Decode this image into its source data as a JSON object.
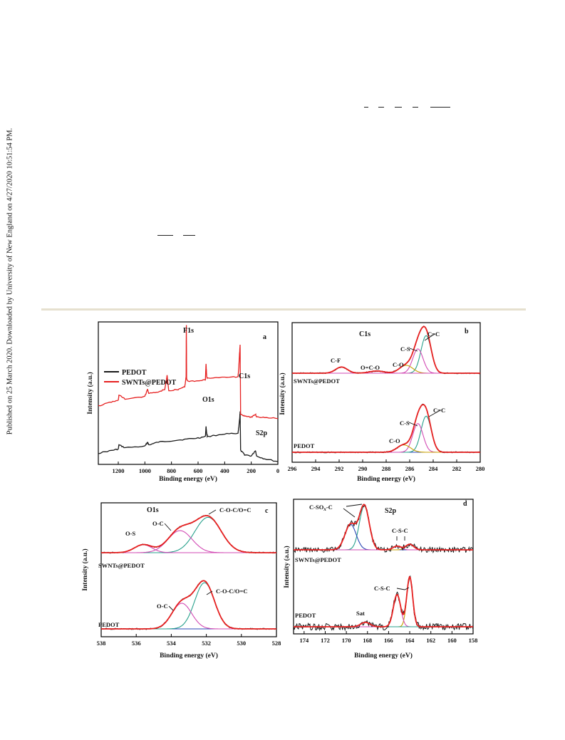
{
  "sidebar_text": "Published on 25 March 2020. Downloaded by University of New England on 4/27/2020 10:51:54 PM.",
  "colors": {
    "black_trace": "#1a1a1a",
    "red_trace": "#e62020",
    "teal": "#28a08c",
    "blue": "#2846b4",
    "magenta": "#d24bb4",
    "orange": "#c8a000"
  },
  "chart_data": [
    {
      "type": "line",
      "panel": "a",
      "xlabel": "Binding energy (eV)",
      "ylabel": "Intensity (a.u.)",
      "xlim": [
        1350,
        0
      ],
      "xticks": [
        1200,
        1000,
        800,
        600,
        400,
        200,
        0
      ],
      "legend": [
        "PEDOT",
        "SWNTs@PEDOT"
      ],
      "legend_position": "top-left",
      "annotations": [
        "F1s",
        "O1s",
        "C1s",
        "S2p"
      ],
      "series": [
        {
          "name": "PEDOT",
          "color": "#1a1a1a",
          "x": [
            1350,
            1250,
            1200,
            1195,
            1150,
            1000,
            980,
            970,
            900,
            800,
            700,
            600,
            545,
            540,
            535,
            530,
            400,
            300,
            295,
            288,
            284,
            280,
            250,
            200,
            168,
            160,
            100,
            0
          ],
          "y": [
            0.08,
            0.1,
            0.11,
            0.14,
            0.12,
            0.13,
            0.16,
            0.14,
            0.16,
            0.17,
            0.18,
            0.19,
            0.2,
            0.27,
            0.22,
            0.2,
            0.22,
            0.22,
            0.26,
            0.32,
            0.38,
            0.1,
            0.07,
            0.06,
            0.1,
            0.06,
            0.04,
            0.02
          ]
        },
        {
          "name": "SWNTs@PEDOT",
          "color": "#e62020",
          "x": [
            1350,
            1250,
            1200,
            1195,
            1150,
            1000,
            980,
            970,
            900,
            850,
            833,
            820,
            750,
            700,
            690,
            688,
            686,
            680,
            600,
            545,
            540,
            535,
            530,
            400,
            300,
            295,
            288,
            284,
            280,
            250,
            200,
            168,
            160,
            100,
            0
          ],
          "y": [
            0.42,
            0.45,
            0.46,
            0.5,
            0.47,
            0.49,
            0.54,
            0.51,
            0.52,
            0.54,
            0.64,
            0.53,
            0.54,
            0.56,
            0.63,
            1.0,
            0.62,
            0.6,
            0.6,
            0.61,
            0.72,
            0.63,
            0.62,
            0.63,
            0.63,
            0.68,
            0.8,
            0.86,
            0.36,
            0.35,
            0.34,
            0.36,
            0.34,
            0.34,
            0.33
          ]
        }
      ]
    },
    {
      "type": "line",
      "panel": "b",
      "xlabel": "Binding energy (eV)",
      "ylabel": "Intensity (a.u.)",
      "xlim": [
        296,
        280
      ],
      "xticks": [
        296,
        294,
        292,
        290,
        288,
        286,
        284,
        282,
        280
      ],
      "annotations": [
        "C1s",
        "C-F",
        "O=C-O",
        "C-O",
        "C-S",
        "C=C",
        "SWNTs@PEDOT",
        "PEDOT"
      ],
      "peaks": [
        {
          "group": "SWNTs@PEDOT",
          "label": "C=C",
          "center": 284.6,
          "amplitude": 0.85,
          "width": 0.7,
          "color": "#28a08c"
        },
        {
          "group": "SWNTs@PEDOT",
          "label": "C-S",
          "center": 285.3,
          "amplitude": 0.55,
          "width": 0.7,
          "color": "#d24bb4"
        },
        {
          "group": "SWNTs@PEDOT",
          "label": "C-O",
          "center": 286.3,
          "amplitude": 0.18,
          "width": 0.9,
          "color": "#c8a000"
        },
        {
          "group": "SWNTs@PEDOT",
          "label": "O=C-O",
          "center": 288.8,
          "amplitude": 0.05,
          "width": 1.0,
          "color": "#d24bb4"
        },
        {
          "group": "SWNTs@PEDOT",
          "label": "C-F",
          "center": 291.8,
          "amplitude": 0.14,
          "width": 0.8,
          "color": "#d24bb4"
        },
        {
          "group": "PEDOT",
          "label": "C=C",
          "center": 284.6,
          "amplitude": 0.78,
          "width": 0.7,
          "color": "#28a08c"
        },
        {
          "group": "PEDOT",
          "label": "C-S",
          "center": 285.3,
          "amplitude": 0.62,
          "width": 0.7,
          "color": "#d24bb4"
        },
        {
          "group": "PEDOT",
          "label": "C-O",
          "center": 286.5,
          "amplitude": 0.16,
          "width": 0.9,
          "color": "#c8a000"
        }
      ]
    },
    {
      "type": "line",
      "panel": "c",
      "xlabel": "Binding energy (eV)",
      "ylabel": "Intensity (a.u.)",
      "xlim": [
        538,
        528
      ],
      "xticks": [
        538,
        536,
        534,
        532,
        530,
        528
      ],
      "annotations": [
        "O1s",
        "O-S",
        "O-C",
        "C-O-C/O=C",
        "SWNTs@PEDOT",
        "PEDOT"
      ],
      "peaks": [
        {
          "group": "SWNTs@PEDOT",
          "label": "C-O-C/O=C",
          "center": 531.9,
          "amplitude": 0.8,
          "width": 1.2,
          "color": "#28a08c"
        },
        {
          "group": "SWNTs@PEDOT",
          "label": "O-C",
          "center": 533.5,
          "amplitude": 0.5,
          "width": 1.1,
          "color": "#d24bb4"
        },
        {
          "group": "SWNTs@PEDOT",
          "label": "O-S",
          "center": 535.6,
          "amplitude": 0.18,
          "width": 0.8,
          "color": "#d24bb4"
        },
        {
          "group": "PEDOT",
          "label": "C-O-C/O=C",
          "center": 532.1,
          "amplitude": 0.9,
          "width": 0.9,
          "color": "#28a08c"
        },
        {
          "group": "PEDOT",
          "label": "O-C",
          "center": 533.4,
          "amplitude": 0.5,
          "width": 0.9,
          "color": "#d24bb4"
        }
      ]
    },
    {
      "type": "line",
      "panel": "d",
      "xlabel": "Binding energy (eV)",
      "ylabel": "Intensity (a.u.)",
      "xlim": [
        175,
        158
      ],
      "xticks": [
        174,
        172,
        170,
        168,
        166,
        164,
        162,
        160,
        158
      ],
      "annotations": [
        "S2p",
        "C-SOx-C",
        "C-S-C",
        "Sat",
        "SWNTs@PEDOT",
        "PEDOT"
      ],
      "peaks": [
        {
          "group": "SWNTs@PEDOT",
          "label": "C-SOx-C",
          "center": 168.3,
          "amplitude": 0.95,
          "width": 0.75,
          "color": "#28a08c"
        },
        {
          "group": "SWNTs@PEDOT",
          "label": "C-SOx-C",
          "center": 169.6,
          "amplitude": 0.55,
          "width": 0.85,
          "color": "#2846b4"
        },
        {
          "group": "SWNTs@PEDOT",
          "label": "C-S-C",
          "center": 164.0,
          "amplitude": 0.12,
          "width": 0.6,
          "color": "#c8a000"
        },
        {
          "group": "SWNTs@PEDOT",
          "label": "C-S-C",
          "center": 165.2,
          "amplitude": 0.08,
          "width": 0.6,
          "color": "#d24bb4"
        },
        {
          "group": "PEDOT",
          "label": "C-S-C",
          "center": 164.0,
          "amplitude": 0.9,
          "width": 0.45,
          "color": "#c8a000"
        },
        {
          "group": "PEDOT",
          "label": "C-S-C",
          "center": 165.2,
          "amplitude": 0.58,
          "width": 0.55,
          "color": "#d24bb4"
        },
        {
          "group": "PEDOT",
          "label": "Sat",
          "center": 168.2,
          "amplitude": 0.08,
          "width": 0.7,
          "color": "#28a08c"
        }
      ]
    }
  ],
  "panels": {
    "a": {
      "letter": "a",
      "ylabel": "Intensity (a.u.)",
      "xlabel": "Binding energy (eV)",
      "legend_pedot": "PEDOT",
      "legend_swnt": "SWNTs@PEDOT",
      "lbl_f1s": "F1s",
      "lbl_o1s": "O1s",
      "lbl_c1s": "C1s",
      "lbl_s2p": "S2p"
    },
    "b": {
      "letter": "b",
      "ylabel": "Intensity (a.u.)",
      "xlabel": "Binding energy (eV)",
      "title": "C1s",
      "lbl_cf": "C-F",
      "lbl_oco": "O=C-O",
      "lbl_co": "C-O",
      "lbl_cs": "C-S",
      "lbl_cc": "C=C",
      "group_top": "SWNTs@PEDOT",
      "group_bottom": "PEDOT",
      "lbl_co2": "C-O",
      "lbl_cs2": "C-S",
      "lbl_cc2": "C=C"
    },
    "c": {
      "letter": "c",
      "ylabel": "Intensity (a.u.)",
      "xlabel": "Binding energy (eV)",
      "title": "O1s",
      "lbl_os": "O-S",
      "lbl_oc": "O-C",
      "lbl_coc": "C-O-C/O=C",
      "group_top": "SWNTs@PEDOT",
      "group_bottom": "PEDOT",
      "lbl_oc2": "O-C",
      "lbl_coc2": "C-O-C/O=C"
    },
    "d": {
      "letter": "d",
      "ylabel": "Intensity (a.u.)",
      "xlabel": "Binding energy (eV)",
      "title": "S2p",
      "lbl_csox": "C-SO",
      "lbl_csox_sub": "x",
      "lbl_csox_tail": "-C",
      "lbl_csc": "C-S-C",
      "group_top": "SWNTs@PEDOT",
      "group_bottom": "PEDOT",
      "lbl_sat": "Sat",
      "lbl_csc2": "C-S-C"
    }
  }
}
